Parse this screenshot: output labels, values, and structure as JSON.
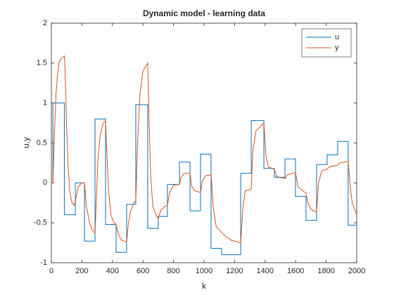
{
  "chart_data": {
    "type": "line",
    "title": "Dynamic model - learning data",
    "xlabel": "k",
    "ylabel": "u,y",
    "xlim": [
      0,
      2000
    ],
    "ylim": [
      -1,
      2
    ],
    "xticks": [
      0,
      200,
      400,
      600,
      800,
      1000,
      1200,
      1400,
      1600,
      1800,
      2000
    ],
    "yticks": [
      -1,
      -0.5,
      0,
      0.5,
      1,
      1.5,
      2
    ],
    "legend": "northeast",
    "series": [
      {
        "name": "u",
        "color": "#0072bd",
        "x": [
          0,
          10,
          10,
          85,
          85,
          157,
          157,
          217,
          217,
          286,
          286,
          355,
          355,
          424,
          424,
          493,
          493,
          553,
          553,
          631,
          631,
          700,
          700,
          760,
          760,
          839,
          839,
          908,
          908,
          977,
          977,
          1046,
          1046,
          1115,
          1115,
          1240,
          1240,
          1309,
          1309,
          1392,
          1392,
          1461,
          1461,
          1530,
          1530,
          1599,
          1599,
          1668,
          1668,
          1737,
          1737,
          1806,
          1806,
          1875,
          1875,
          1944,
          1944,
          2000
        ],
        "values": [
          0,
          0,
          1,
          1,
          -0.4,
          -0.4,
          0,
          0,
          -0.73,
          -0.73,
          0.8,
          0.8,
          -0.52,
          -0.52,
          -0.87,
          -0.87,
          -0.27,
          -0.27,
          0.98,
          0.98,
          -0.57,
          -0.57,
          -0.42,
          -0.42,
          -0.02,
          -0.02,
          0.26,
          0.26,
          -0.35,
          -0.35,
          0.36,
          0.36,
          -0.82,
          -0.82,
          -0.9,
          -0.9,
          0.12,
          0.12,
          0.78,
          0.78,
          0.18,
          0.18,
          0.07,
          0.07,
          0.3,
          0.3,
          -0.17,
          -0.17,
          -0.47,
          -0.47,
          0.23,
          0.23,
          0.35,
          0.35,
          0.52,
          0.52,
          -0.53,
          -0.53
        ]
      },
      {
        "name": "y",
        "color": "#d95319",
        "x": [
          0,
          10,
          20,
          30,
          40,
          50,
          60,
          85,
          90,
          100,
          110,
          120,
          135,
          150,
          160,
          175,
          200,
          217,
          230,
          250,
          270,
          286,
          295,
          305,
          320,
          340,
          355,
          365,
          375,
          390,
          410,
          424,
          440,
          460,
          493,
          505,
          520,
          540,
          553,
          565,
          580,
          600,
          631,
          640,
          650,
          665,
          685,
          700,
          715,
          740,
          760,
          775,
          800,
          839,
          850,
          870,
          908,
          920,
          940,
          977,
          990,
          1010,
          1046,
          1060,
          1080,
          1115,
          1140,
          1180,
          1240,
          1255,
          1270,
          1309,
          1320,
          1340,
          1392,
          1405,
          1420,
          1461,
          1475,
          1530,
          1545,
          1599,
          1615,
          1668,
          1680,
          1700,
          1737,
          1750,
          1770,
          1806,
          1820,
          1875,
          1890,
          1944,
          1955,
          1970,
          2000
        ],
        "values": [
          0,
          0,
          0.6,
          1.1,
          1.35,
          1.5,
          1.55,
          1.59,
          1.4,
          0.7,
          0.2,
          -0.1,
          -0.25,
          -0.28,
          -0.2,
          -0.05,
          0,
          0,
          -0.3,
          -0.5,
          -0.6,
          -0.63,
          -0.2,
          0.3,
          0.6,
          0.75,
          0.78,
          0.3,
          -0.1,
          -0.4,
          -0.5,
          -0.52,
          -0.65,
          -0.72,
          -0.74,
          -0.5,
          -0.35,
          -0.25,
          -0.22,
          0.5,
          1.1,
          1.4,
          1.5,
          0.8,
          0.1,
          -0.3,
          -0.4,
          -0.45,
          -0.35,
          -0.3,
          -0.28,
          -0.12,
          -0.03,
          -0.02,
          0.07,
          0.12,
          0.12,
          -0.05,
          -0.1,
          -0.12,
          0.03,
          0.09,
          0.1,
          -0.3,
          -0.55,
          -0.62,
          -0.67,
          -0.72,
          -0.75,
          -0.3,
          -0.1,
          -0.08,
          0.4,
          0.65,
          0.75,
          0.35,
          0.2,
          0.17,
          0.08,
          0.05,
          0.1,
          0.13,
          -0.05,
          -0.13,
          -0.25,
          -0.33,
          -0.37,
          0,
          0.15,
          0.17,
          0.2,
          0.22,
          0.25,
          0.27,
          0,
          -0.25,
          -0.4
        ]
      }
    ]
  }
}
